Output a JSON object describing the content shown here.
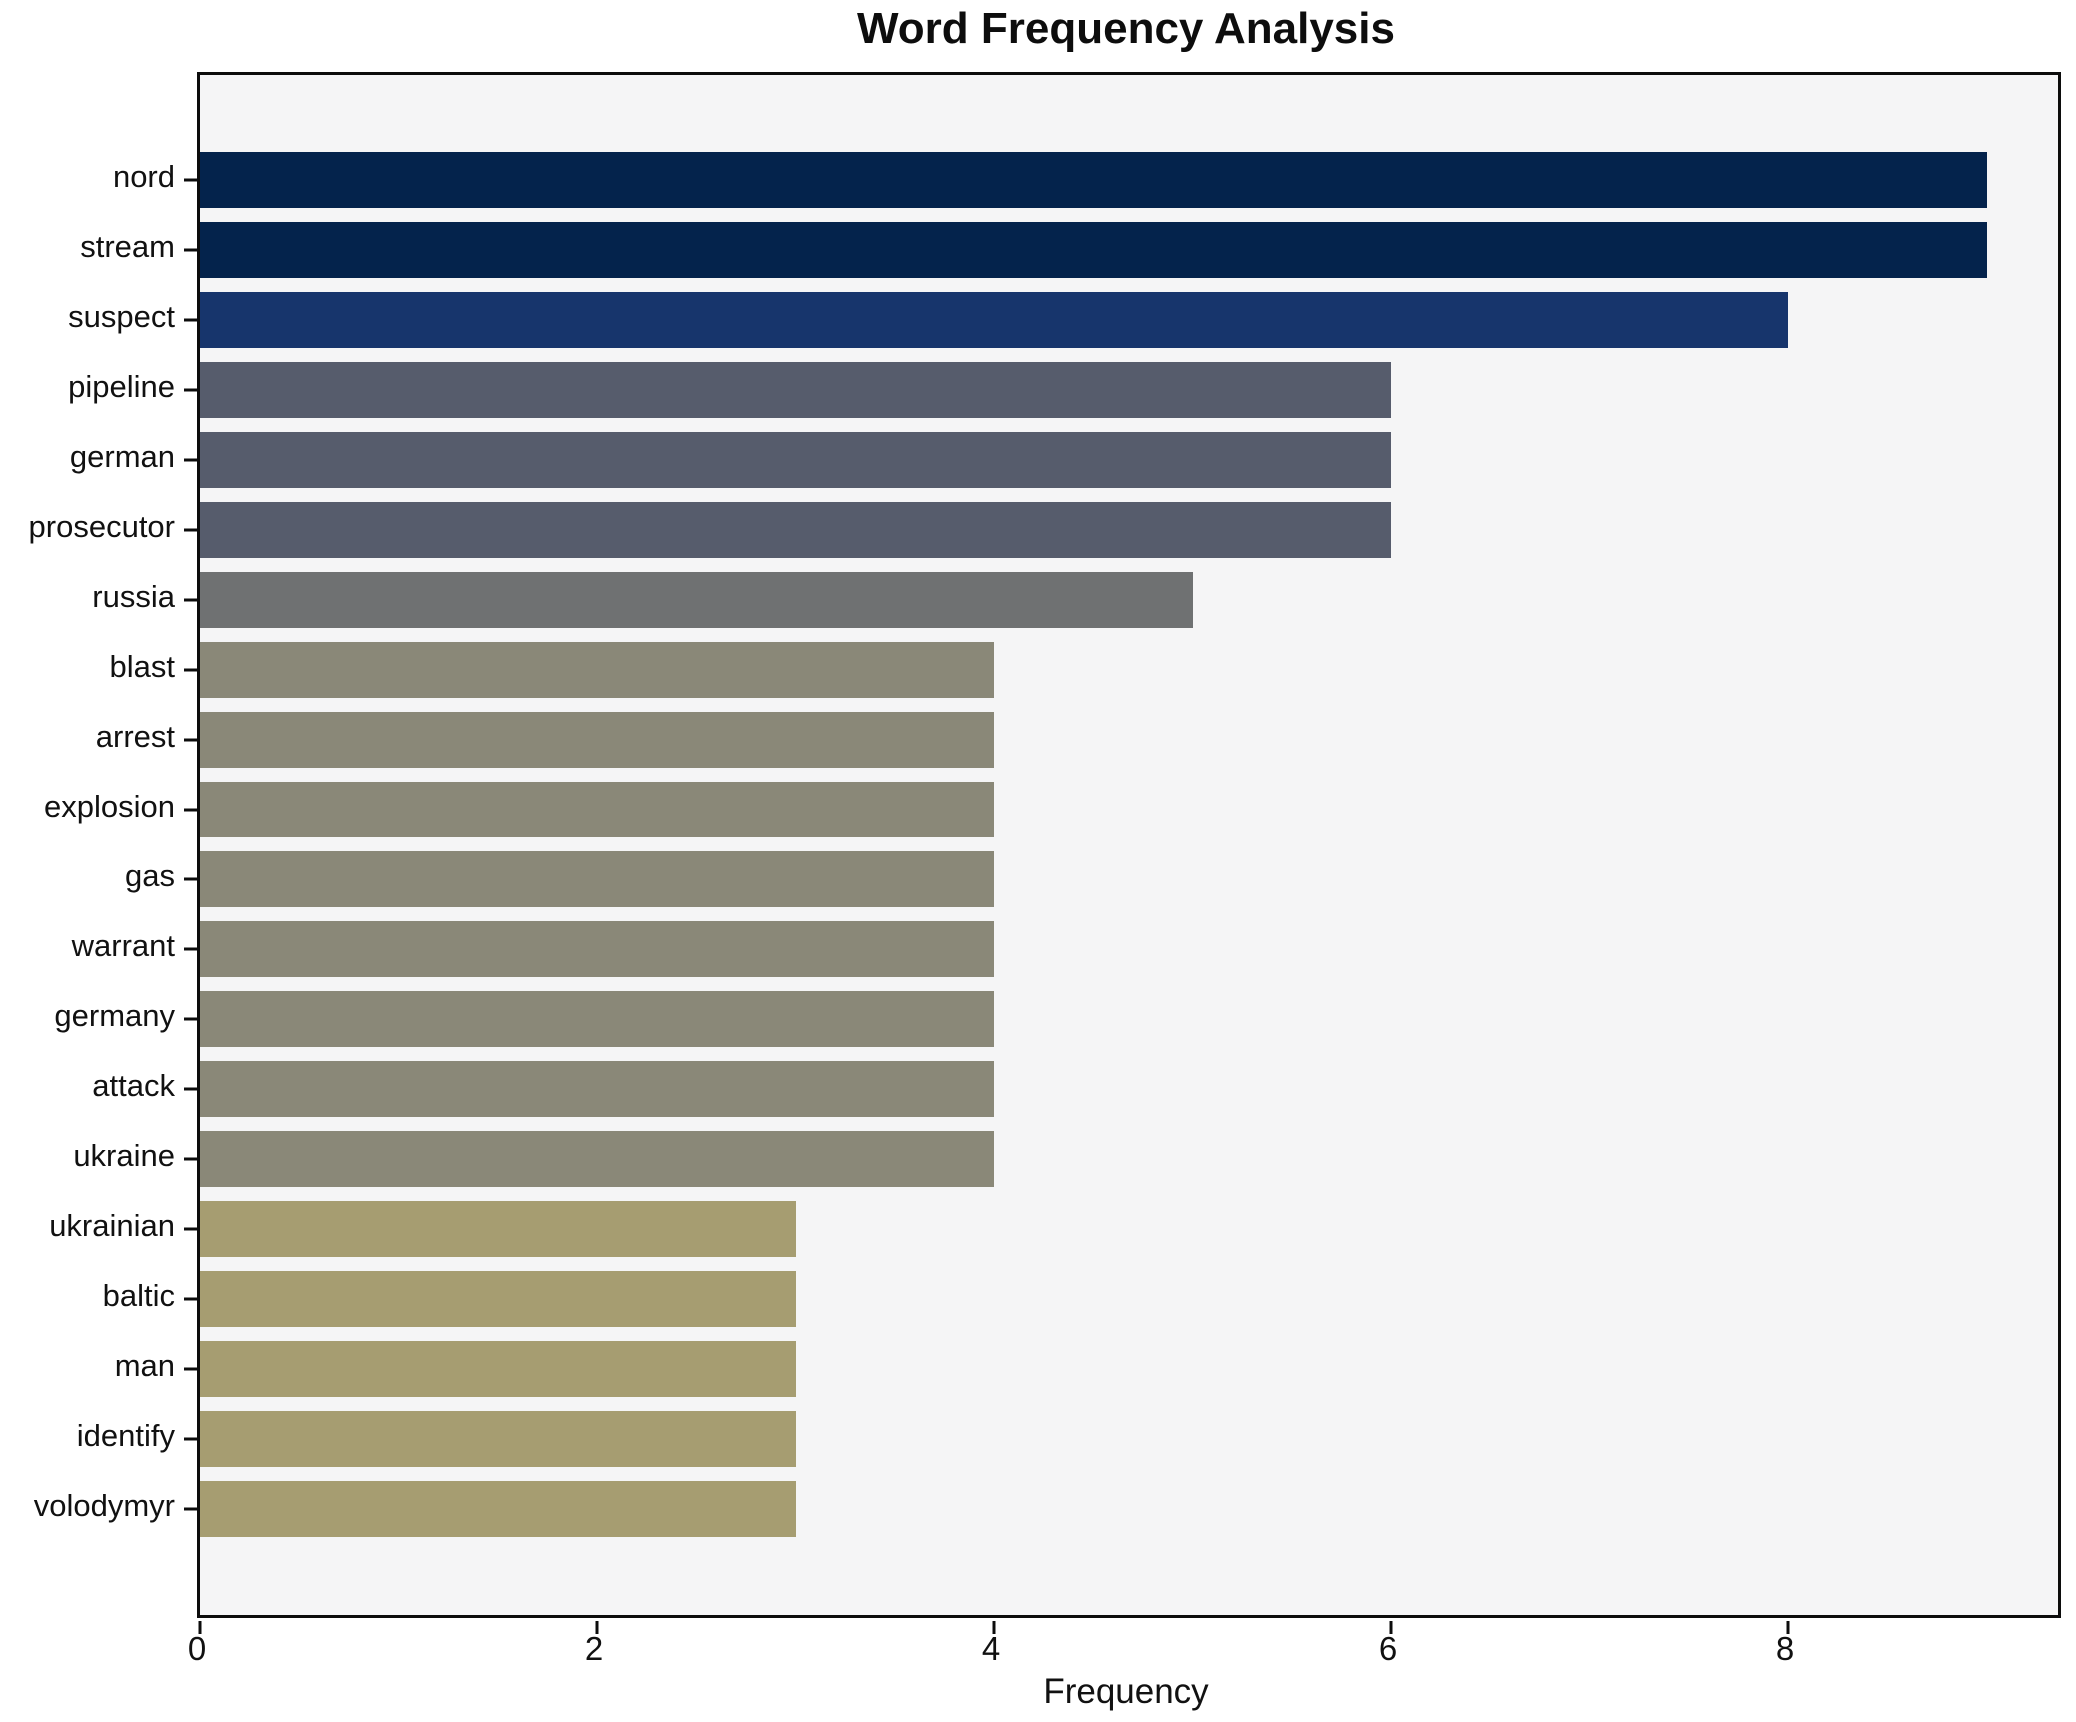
{
  "chart_data": {
    "type": "bar",
    "orientation": "horizontal",
    "title": "Word Frequency Analysis",
    "xlabel": "Frequency",
    "ylabel": "",
    "categories": [
      "nord",
      "stream",
      "suspect",
      "pipeline",
      "german",
      "prosecutor",
      "russia",
      "blast",
      "arrest",
      "explosion",
      "gas",
      "warrant",
      "germany",
      "attack",
      "ukraine",
      "ukrainian",
      "baltic",
      "man",
      "identify",
      "volodymyr"
    ],
    "values": [
      9,
      9,
      8,
      6,
      6,
      6,
      5,
      4,
      4,
      4,
      4,
      4,
      4,
      4,
      4,
      3,
      3,
      3,
      3,
      3
    ],
    "bar_colors": [
      "#04234c",
      "#04234c",
      "#17356c",
      "#565c6c",
      "#565c6c",
      "#565c6c",
      "#6f7172",
      "#8a8878",
      "#8a8878",
      "#8a8878",
      "#8a8878",
      "#8a8878",
      "#8a8878",
      "#8a8878",
      "#8a8878",
      "#a69d71",
      "#a69d71",
      "#a69d71",
      "#a69d71",
      "#a69d71"
    ],
    "x_ticks": [
      0,
      2,
      4,
      6,
      8
    ],
    "xlim": [
      0,
      9.36
    ],
    "grid": false,
    "legend": false,
    "bar_rel_height": 0.8,
    "plot_bg": "#f5f5f6",
    "fig_bg": "#ffffff",
    "axis_color": "#0c0c0c",
    "text_color": "#111111"
  }
}
